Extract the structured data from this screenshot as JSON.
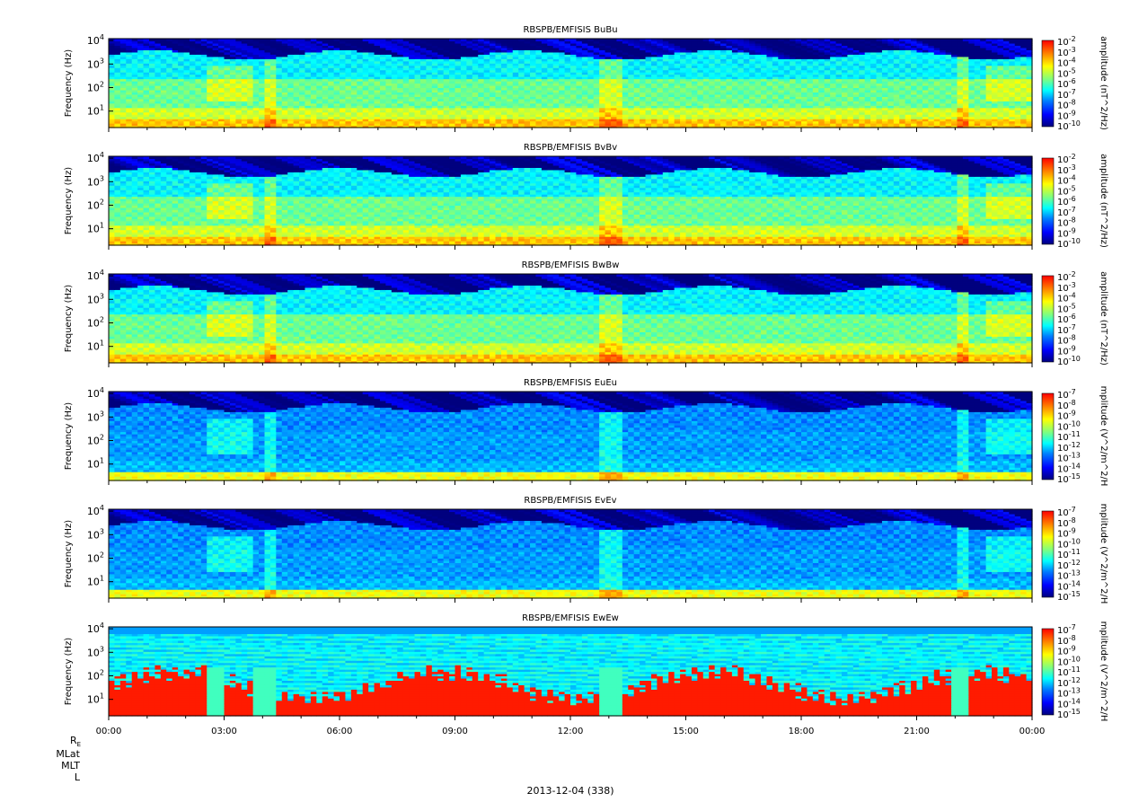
{
  "figure": {
    "date_label": "2013-12-04 (338)",
    "ephemeris_labels": [
      "R",
      "E",
      "MLat",
      "MLT",
      "L"
    ]
  },
  "chart_data": [
    {
      "type": "heatmap",
      "title": "RBSPB/EMFISIS  BuBu",
      "ylabel": "Frequency (Hz)",
      "yscale": "log",
      "ylim": [
        2,
        12000
      ],
      "yticks": [
        1,
        2,
        3,
        4
      ],
      "colorbar_label": "amplitude (nT^2/Hz)",
      "colorbar_scale": "log",
      "colorbar_exponents": [
        -2,
        -3,
        -4,
        -5,
        -6,
        -7,
        -8,
        -9,
        -10
      ],
      "kind": "B"
    },
    {
      "type": "heatmap",
      "title": "RBSPB/EMFISIS  BvBv",
      "ylabel": "Frequency (Hz)",
      "yscale": "log",
      "ylim": [
        2,
        12000
      ],
      "yticks": [
        1,
        2,
        3,
        4
      ],
      "colorbar_label": "amplitude (nT^2/Hz)",
      "colorbar_scale": "log",
      "colorbar_exponents": [
        -2,
        -3,
        -4,
        -5,
        -6,
        -7,
        -8,
        -9,
        -10
      ],
      "kind": "B"
    },
    {
      "type": "heatmap",
      "title": "RBSPB/EMFISIS  BwBw",
      "ylabel": "Frequency (Hz)",
      "yscale": "log",
      "ylim": [
        2,
        12000
      ],
      "yticks": [
        1,
        2,
        3,
        4
      ],
      "colorbar_label": "amplitude (nT^2/Hz)",
      "colorbar_scale": "log",
      "colorbar_exponents": [
        -2,
        -3,
        -4,
        -5,
        -6,
        -7,
        -8,
        -9,
        -10
      ],
      "kind": "Bw"
    },
    {
      "type": "heatmap",
      "title": "RBSPB/EMFISIS  EuEu",
      "ylabel": "Frequency (Hz)",
      "yscale": "log",
      "ylim": [
        2,
        12000
      ],
      "yticks": [
        1,
        2,
        3,
        4
      ],
      "colorbar_label": "mplitude (V^2/m^2/H",
      "colorbar_scale": "log",
      "colorbar_exponents": [
        -7,
        -8,
        -9,
        -10,
        -11,
        -12,
        -13,
        -14,
        -15
      ],
      "kind": "E"
    },
    {
      "type": "heatmap",
      "title": "RBSPB/EMFISIS  EvEv",
      "ylabel": "Frequency (Hz)",
      "yscale": "log",
      "ylim": [
        2,
        12000
      ],
      "yticks": [
        1,
        2,
        3,
        4
      ],
      "colorbar_label": "mplitude (V^2/m^2/H",
      "colorbar_scale": "log",
      "colorbar_exponents": [
        -7,
        -8,
        -9,
        -10,
        -11,
        -12,
        -13,
        -14,
        -15
      ],
      "kind": "E"
    },
    {
      "type": "heatmap",
      "title": "RBSPB/EMFISIS  EwEw",
      "ylabel": "Frequency (Hz)",
      "yscale": "log",
      "ylim": [
        2,
        12000
      ],
      "yticks": [
        1,
        2,
        3,
        4
      ],
      "colorbar_label": "mplitude (V^2/m^2/H",
      "colorbar_scale": "log",
      "colorbar_exponents": [
        -7,
        -8,
        -9,
        -10,
        -11,
        -12,
        -13,
        -14,
        -15
      ],
      "kind": "Ew"
    }
  ],
  "time_axis": {
    "tick_labels": [
      "00:00",
      "03:00",
      "06:00",
      "09:00",
      "12:00",
      "15:00",
      "18:00",
      "21:00",
      "00:00"
    ],
    "xlim_hours": [
      0,
      24
    ],
    "major_tick_hours": [
      0,
      3,
      6,
      9,
      12,
      15,
      18,
      21,
      24
    ]
  },
  "colorscale": [
    "#00007f",
    "#0000ff",
    "#0080ff",
    "#00ffff",
    "#7fff7f",
    "#ffff00",
    "#ff8000",
    "#ff0000"
  ]
}
